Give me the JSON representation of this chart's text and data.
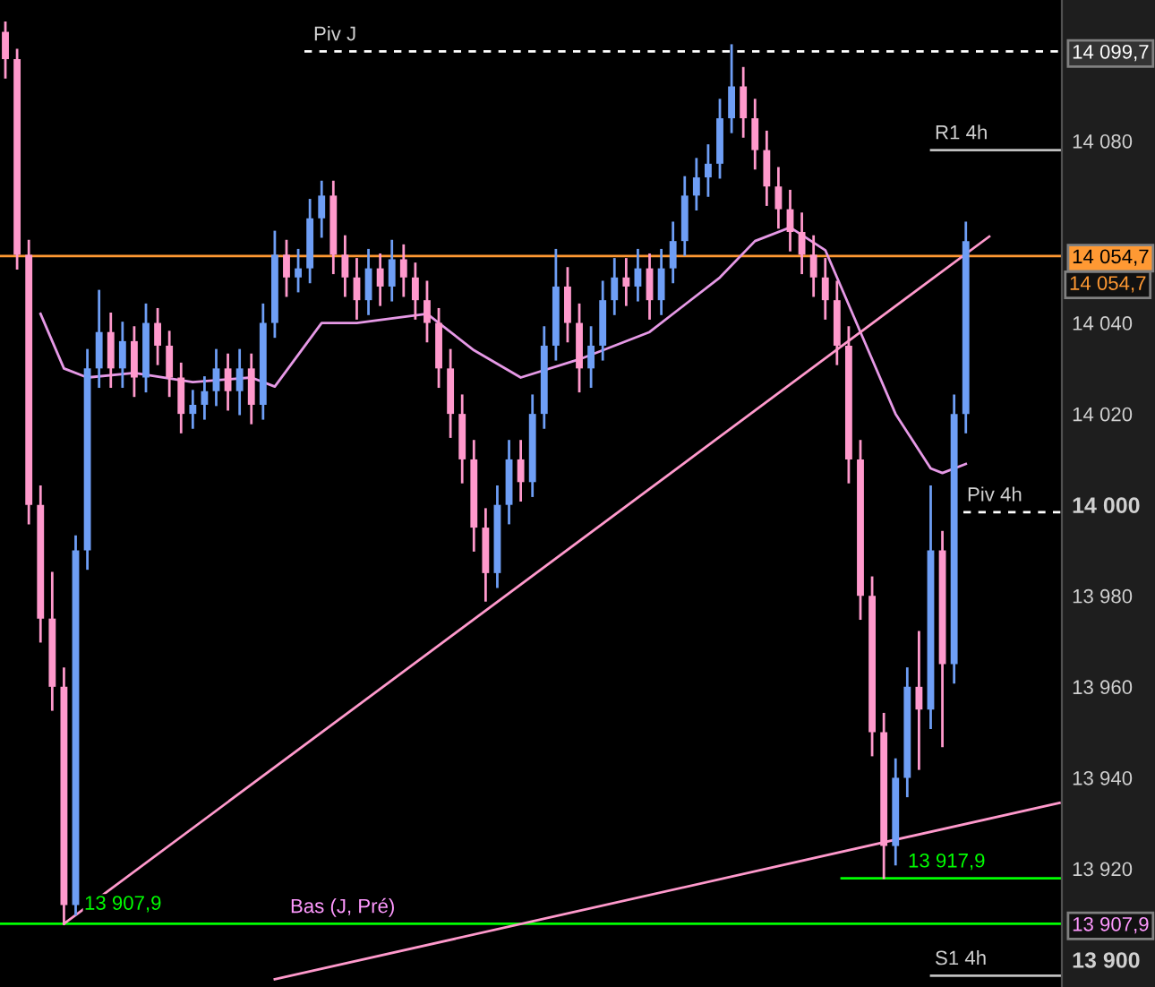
{
  "chart_data": {
    "type": "candlestick",
    "categories": [
      null,
      null,
      null,
      null,
      null,
      null,
      null,
      null,
      null,
      null,
      null,
      null,
      null,
      null,
      null,
      null,
      null,
      null,
      null,
      null,
      null,
      null,
      null,
      null,
      null,
      null,
      null,
      null,
      null,
      null,
      null,
      null,
      null,
      null,
      null,
      null,
      null,
      null,
      null,
      null,
      null,
      null,
      null,
      null,
      null,
      null,
      null,
      null,
      null,
      null,
      null,
      null,
      null,
      null,
      null,
      null,
      null,
      null,
      null,
      null,
      null,
      null,
      null,
      null,
      null,
      null,
      null,
      null,
      null,
      null,
      null,
      null,
      null,
      null,
      null,
      null,
      null,
      null,
      null,
      null,
      null,
      null,
      null,
      null,
      null,
      null,
      null,
      null,
      null,
      null,
      null
    ],
    "ohlc": [
      [
        14104,
        14106,
        14094,
        14098
      ],
      [
        14098,
        14100,
        14052,
        14055
      ],
      [
        14055,
        14058,
        13996,
        14000
      ],
      [
        14000,
        14004,
        13970,
        13975
      ],
      [
        13975,
        13985,
        13955,
        13960
      ],
      [
        13960,
        13964,
        13907.9,
        13912
      ],
      [
        13912,
        13993,
        13910,
        13990
      ],
      [
        13990,
        14034,
        13986,
        14030
      ],
      [
        14030,
        14047,
        14026,
        14038
      ],
      [
        14038,
        14042,
        14026,
        14030
      ],
      [
        14030,
        14040,
        14026,
        14036
      ],
      [
        14036,
        14039,
        14024,
        14028
      ],
      [
        14028,
        14044,
        14025,
        14040
      ],
      [
        14040,
        14043,
        14031,
        14035
      ],
      [
        14035,
        14038,
        14024,
        14028
      ],
      [
        14028,
        14031,
        14016,
        14020
      ],
      [
        14020,
        14025,
        14017,
        14022
      ],
      [
        14022,
        14028,
        14019,
        14025
      ],
      [
        14025,
        14034,
        14022,
        14030
      ],
      [
        14030,
        14033,
        14021,
        14025
      ],
      [
        14025,
        14034,
        14020,
        14030
      ],
      [
        14030,
        14033,
        14018,
        14022
      ],
      [
        14022,
        14044,
        14019,
        14040
      ],
      [
        14040,
        14060,
        14037,
        14055
      ],
      [
        14055,
        14058,
        14046,
        14050
      ],
      [
        14050,
        14056,
        14047,
        14052
      ],
      [
        14052,
        14067,
        14049,
        14063
      ],
      [
        14063,
        14071,
        14059,
        14068
      ],
      [
        14068,
        14071,
        14051,
        14055
      ],
      [
        14055,
        14059,
        14046,
        14050
      ],
      [
        14050,
        14054,
        14041,
        14045
      ],
      [
        14045,
        14056,
        14042,
        14052
      ],
      [
        14052,
        14055,
        14044,
        14048
      ],
      [
        14048,
        14058,
        14045,
        14054
      ],
      [
        14054,
        14057,
        14046,
        14050
      ],
      [
        14050,
        14053,
        14041,
        14045
      ],
      [
        14045,
        14049,
        14036,
        14040
      ],
      [
        14040,
        14043,
        14026,
        14030
      ],
      [
        14030,
        14034,
        14015,
        14020
      ],
      [
        14020,
        14024,
        14005,
        14010
      ],
      [
        14010,
        14014,
        13990,
        13995
      ],
      [
        13995,
        13999,
        13979,
        13985
      ],
      [
        13985,
        14004,
        13982,
        14000
      ],
      [
        14000,
        14014,
        13996,
        14010
      ],
      [
        14010,
        14014,
        14001,
        14005
      ],
      [
        14005,
        14024,
        14002,
        14020
      ],
      [
        14020,
        14039,
        14017,
        14035
      ],
      [
        14035,
        14056,
        14032,
        14048
      ],
      [
        14048,
        14052,
        14036,
        14040
      ],
      [
        14040,
        14044,
        14025,
        14030
      ],
      [
        14030,
        14039,
        14026,
        14035
      ],
      [
        14035,
        14049,
        14032,
        14045
      ],
      [
        14045,
        14054,
        14042,
        14050
      ],
      [
        14050,
        14054,
        14044,
        14048
      ],
      [
        14048,
        14056,
        14045,
        14052
      ],
      [
        14052,
        14055,
        14041,
        14045
      ],
      [
        14045,
        14056,
        14042,
        14052
      ],
      [
        14052,
        14062,
        14049,
        14058
      ],
      [
        14058,
        14072,
        14055,
        14068
      ],
      [
        14068,
        14076,
        14065,
        14072
      ],
      [
        14072,
        14079,
        14068,
        14075
      ],
      [
        14075,
        14089,
        14072,
        14085
      ],
      [
        14085,
        14101,
        14082,
        14092
      ],
      [
        14092,
        14096,
        14081,
        14085
      ],
      [
        14085,
        14089,
        14074,
        14078
      ],
      [
        14078,
        14082,
        14066,
        14070
      ],
      [
        14070,
        14074,
        14061,
        14065
      ],
      [
        14065,
        14069,
        14056,
        14060
      ],
      [
        14060,
        14064,
        14051,
        14055
      ],
      [
        14055,
        14059,
        14046,
        14050
      ],
      [
        14050,
        14054,
        14041,
        14045
      ],
      [
        14045,
        14049,
        14031,
        14035
      ],
      [
        14035,
        14039,
        14005,
        14010
      ],
      [
        14010,
        14014,
        13975,
        13980
      ],
      [
        13980,
        13984,
        13945,
        13950
      ],
      [
        13950,
        13954,
        13918,
        13925
      ],
      [
        13925,
        13944,
        13921,
        13940
      ],
      [
        13940,
        13964,
        13936,
        13960
      ],
      [
        13960,
        13972,
        13942,
        13955
      ],
      [
        13955,
        14004,
        13951,
        13990
      ],
      [
        13990,
        13994,
        13947,
        13965
      ],
      [
        13965,
        14024,
        13961,
        14020
      ],
      [
        14020,
        14062,
        14016,
        14058
      ],
      null,
      null,
      null,
      null,
      null,
      null,
      null,
      null
    ],
    "colors": [
      "#ff99cc",
      "#ff99cc",
      "#ff99cc",
      "#ff99cc",
      "#ff99cc",
      "#ff99cc",
      "#6e9ef5",
      "#6e9ef5",
      "#6e9ef5",
      "#ff99cc",
      "#6e9ef5",
      "#ff99cc",
      "#6e9ef5",
      "#ff99cc",
      "#ff99cc",
      "#ff99cc",
      "#6e9ef5",
      "#6e9ef5",
      "#6e9ef5",
      "#ff99cc",
      "#6e9ef5",
      "#ff99cc",
      "#6e9ef5",
      "#6e9ef5",
      "#ff99cc",
      "#6e9ef5",
      "#6e9ef5",
      "#6e9ef5",
      "#ff99cc",
      "#ff99cc",
      "#ff99cc",
      "#6e9ef5",
      "#ff99cc",
      "#6e9ef5",
      "#ff99cc",
      "#ff99cc",
      "#ff99cc",
      "#ff99cc",
      "#ff99cc",
      "#ff99cc",
      "#ff99cc",
      "#ff99cc",
      "#6e9ef5",
      "#6e9ef5",
      "#ff99cc",
      "#6e9ef5",
      "#6e9ef5",
      "#6e9ef5",
      "#ff99cc",
      "#ff99cc",
      "#6e9ef5",
      "#6e9ef5",
      "#6e9ef5",
      "#ff99cc",
      "#6e9ef5",
      "#ff99cc",
      "#6e9ef5",
      "#6e9ef5",
      "#6e9ef5",
      "#6e9ef5",
      "#6e9ef5",
      "#6e9ef5",
      "#6e9ef5",
      "#ff99cc",
      "#ff99cc",
      "#ff99cc",
      "#ff99cc",
      "#ff99cc",
      "#ff99cc",
      "#ff99cc",
      "#ff99cc",
      "#ff99cc",
      "#ff99cc",
      "#ff99cc",
      "#ff99cc",
      "#ff99cc",
      "#6e9ef5",
      "#6e9ef5",
      "#ff99cc",
      "#6e9ef5",
      "#ff99cc",
      "#6e9ef5",
      "#6e9ef5",
      null,
      null,
      null,
      null,
      null,
      null,
      null,
      null
    ],
    "series": [
      {
        "type": "line",
        "color": "#e699e6",
        "values": [
          null,
          null,
          null,
          14042,
          null,
          14030,
          null,
          14028,
          null,
          null,
          null,
          14029,
          null,
          null,
          null,
          null,
          14027,
          null,
          null,
          null,
          null,
          14028,
          null,
          14026,
          null,
          null,
          null,
          14040,
          null,
          null,
          14040,
          null,
          null,
          null,
          null,
          null,
          14042,
          null,
          null,
          null,
          14034,
          null,
          null,
          null,
          14028,
          null,
          null,
          null,
          null,
          14032,
          null,
          null,
          null,
          null,
          null,
          14038,
          null,
          null,
          14044,
          null,
          null,
          14050,
          null,
          null,
          14058,
          null,
          null,
          14061,
          null,
          null,
          14056,
          null,
          null,
          14038,
          null,
          null,
          14020,
          null,
          null,
          14008,
          14007,
          null,
          14009,
          null,
          null,
          null,
          null,
          null,
          null,
          null,
          null
        ]
      },
      {
        "type": "line",
        "color": "#ff99cc",
        "values": [
          null,
          null,
          null,
          null,
          null,
          13907.9,
          null,
          null,
          null,
          null,
          null,
          null,
          null,
          null,
          null,
          null,
          null,
          null,
          null,
          null,
          null,
          null,
          null,
          null,
          null,
          null,
          null,
          null,
          null,
          null,
          null,
          null,
          null,
          null,
          null,
          null,
          null,
          null,
          null,
          null,
          null,
          null,
          null,
          null,
          null,
          null,
          null,
          null,
          null,
          null,
          null,
          null,
          null,
          null,
          null,
          null,
          null,
          null,
          null,
          null,
          null,
          null,
          null,
          null,
          null,
          null,
          null,
          null,
          null,
          null,
          null,
          null,
          null,
          null,
          null,
          null,
          null,
          null,
          null,
          null,
          null,
          null,
          null,
          null,
          14059,
          null,
          null,
          null,
          null,
          null,
          null
        ]
      },
      {
        "type": "line",
        "color": "#ff99cc",
        "values": [
          null,
          null,
          null,
          null,
          null,
          null,
          null,
          null,
          null,
          null,
          null,
          null,
          null,
          null,
          null,
          null,
          null,
          null,
          null,
          null,
          null,
          null,
          null,
          13895.7,
          null,
          null,
          null,
          null,
          null,
          null,
          null,
          null,
          null,
          null,
          null,
          null,
          null,
          null,
          null,
          null,
          null,
          null,
          null,
          null,
          null,
          null,
          null,
          null,
          null,
          null,
          null,
          null,
          null,
          null,
          null,
          null,
          null,
          null,
          null,
          null,
          null,
          null,
          null,
          null,
          null,
          null,
          null,
          null,
          null,
          null,
          null,
          null,
          null,
          null,
          null,
          null,
          null,
          null,
          null,
          null,
          null,
          null,
          null,
          null,
          null,
          null,
          null,
          null,
          null,
          null,
          13934.5
        ]
      }
    ],
    "ylim": [
      13894,
      14111
    ],
    "yticks": [
      {
        "value": 13900,
        "label": "13 900"
      },
      {
        "value": 13920,
        "label": "13 920"
      },
      {
        "value": 13940,
        "label": "13 940"
      },
      {
        "value": 13960,
        "label": "13 960"
      },
      {
        "value": 13980,
        "label": "13 980"
      },
      {
        "value": 14000,
        "label": "14 000"
      },
      {
        "value": 14020,
        "label": "14 020"
      },
      {
        "value": 14040,
        "label": "14 040"
      },
      {
        "value": 14080,
        "label": "14 080"
      },
      {
        "value": 14099.7,
        "label": "14 099,7"
      },
      {
        "value": 14054.7,
        "label": "14 054,7"
      },
      {
        "value": 13907.9,
        "label": "13 907,9"
      }
    ],
    "tick_labels": "y",
    "ref_lines": [
      {
        "axis": "y",
        "value": 14099.7,
        "label": "Piv J",
        "color": "#ffffff",
        "line_style": "dashed"
      },
      {
        "axis": "y",
        "value": 14078,
        "label": "R1 4h",
        "color": "#c0c0c0",
        "line_style": "solid"
      },
      {
        "axis": "y",
        "value": 14054.7,
        "color": "#ff9933",
        "line_style": "solid"
      },
      {
        "axis": "y",
        "value": 13998.4,
        "label": "Piv 4h",
        "color": "#ffffff",
        "line_style": "dashed"
      },
      {
        "axis": "y",
        "value": 13917.9,
        "label": "13 917,9",
        "color": "#00ff00",
        "line_style": "solid"
      },
      {
        "axis": "y",
        "value": 13907.9,
        "label": "Bas (J, Pré)",
        "color": "#00ff00",
        "line_style": "solid"
      },
      {
        "axis": "y",
        "value": 13896.5,
        "label": "S1 4h",
        "color": "#c0c0c0",
        "line_style": "solid"
      }
    ],
    "annotations": [
      "13 907,9",
      "14 054,7"
    ],
    "grid": false,
    "legend": false
  }
}
